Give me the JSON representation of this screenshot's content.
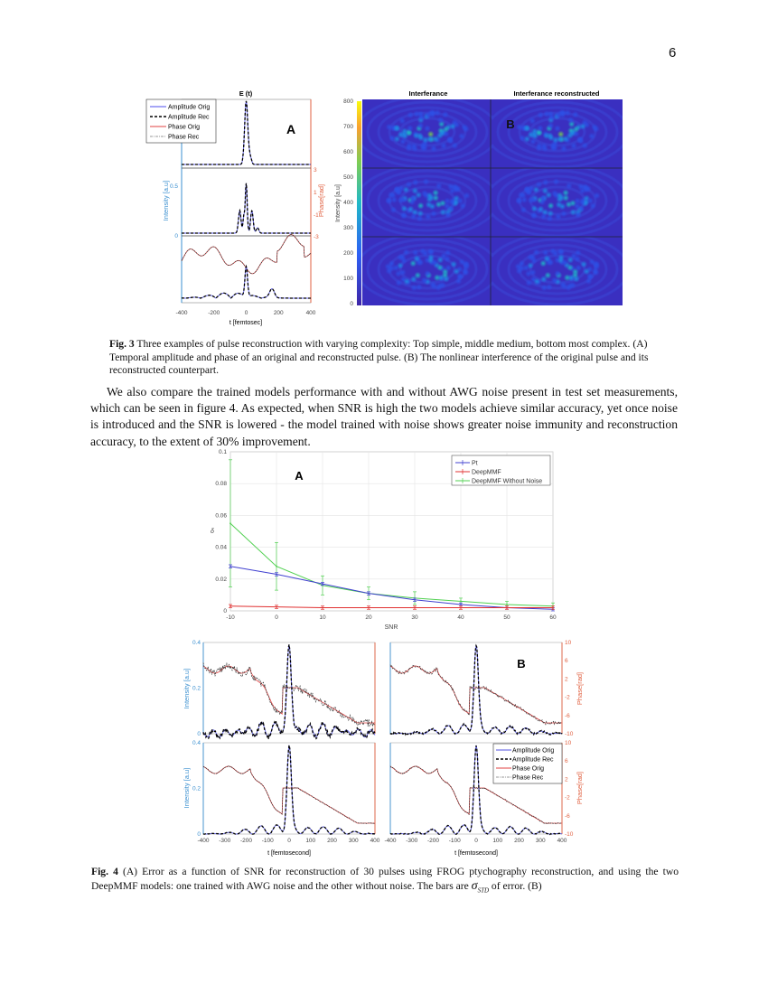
{
  "page_number": "6",
  "fig3": {
    "panel_a": {
      "title": "E (t)",
      "label": "A",
      "legend": [
        "Amplitude Orig",
        "Amplitude Rec",
        "Phase Orig",
        "Phase Rec"
      ],
      "ylabel_left": "Intensity [a.u]",
      "ylabel_right": "Phase[rad]",
      "xlabel": "t [femtosec]",
      "x_ticks": [
        "-400",
        "-200",
        "0",
        "200",
        "400"
      ],
      "y_ticks_left": [
        "0.5",
        "0"
      ],
      "y_ticks_right": [
        "3",
        "1",
        "-1",
        "-3"
      ]
    },
    "panel_b": {
      "label": "B",
      "title_left": "Interferance",
      "title_right": "Interferance reconstructed",
      "colorbar_label": "Intensity [a.u]",
      "colorbar_ticks": [
        "800",
        "700",
        "600",
        "500",
        "400",
        "300",
        "200",
        "100",
        "0"
      ],
      "colormap": [
        "#3e26a8",
        "#2d5ff5",
        "#1fb8c8",
        "#7dcd54",
        "#f9d12c",
        "#f9fb0e"
      ]
    },
    "caption_label": "Fig. 3",
    "caption": "Three examples of pulse reconstruction with varying complexity: Top simple, middle medium, bottom most complex. (A) Temporal amplitude and phase of an original and reconstructed pulse. (B) The nonlinear interference of the original pulse and its reconstructed counterpart."
  },
  "paragraph": "We also compare the trained models performance with and without AWG noise present in test set measurements, which can be seen in figure 4. As expected, when SNR is high the two models achieve similar accuracy, yet once noise is introduced and the SNR is lowered - the model trained with noise shows greater noise immunity and reconstruction accuracy, to the extent of 30% improvement.",
  "chart_data": {
    "type": "line",
    "label": "A",
    "xlabel": "SNR",
    "ylabel": "δ",
    "x": [
      -10,
      0,
      10,
      20,
      30,
      40,
      50,
      60
    ],
    "xlim": [
      -10,
      60
    ],
    "ylim": [
      0,
      0.1
    ],
    "x_ticks": [
      "-10",
      "0",
      "10",
      "20",
      "30",
      "40",
      "50",
      "60"
    ],
    "y_ticks": [
      "0",
      "0.02",
      "0.04",
      "0.06",
      "0.08",
      "0.1"
    ],
    "grid": true,
    "legend_position": "top-right",
    "series": [
      {
        "name": "Pt",
        "color": "#4040d0",
        "values": [
          0.028,
          0.023,
          0.017,
          0.011,
          0.007,
          0.004,
          0.002,
          0.001
        ],
        "errors": [
          0.001,
          0.001,
          0.001,
          0.001,
          0.001,
          0.001,
          0.001,
          0.001
        ]
      },
      {
        "name": "DeepMMF",
        "color": "#e03030",
        "values": [
          0.003,
          0.0025,
          0.002,
          0.002,
          0.002,
          0.002,
          0.002,
          0.002
        ],
        "errors": [
          0.001,
          0.001,
          0.001,
          0.001,
          0.001,
          0.001,
          0.001,
          0.001
        ]
      },
      {
        "name": "DeepMMF Without Noise",
        "color": "#50d050",
        "values": [
          0.055,
          0.028,
          0.016,
          0.011,
          0.008,
          0.006,
          0.004,
          0.003
        ],
        "errors": [
          0.04,
          0.015,
          0.006,
          0.004,
          0.004,
          0.002,
          0.002,
          0.002
        ]
      }
    ]
  },
  "fig4": {
    "panel_b": {
      "label": "B",
      "ylabel_left": "Intensity [a.u]",
      "ylabel_right": "Phase[rad]",
      "xlabel": "t [femtosecond]",
      "x_ticks": [
        "-400",
        "-300",
        "-200",
        "-100",
        "0",
        "100",
        "200",
        "300",
        "400"
      ],
      "y_ticks_left": [
        "0.4",
        "0.2",
        "0"
      ],
      "y_ticks_right": [
        "10",
        "6",
        "2",
        "-2",
        "-6",
        "-10"
      ],
      "legend": [
        "Amplitude Orig",
        "Amplitude Rec",
        "Phase Orig",
        "Phase Rec"
      ]
    },
    "caption_label": "Fig. 4",
    "caption_pre": "(A) Error as a function of SNR for reconstruction of 30 pulses using FROG ptychography reconstruction, and using the two DeepMMF models: one trained with AWG noise and the other without noise. The bars are ",
    "caption_sym": "σ",
    "caption_sub": "STD",
    "caption_post": " of error. (B)"
  }
}
